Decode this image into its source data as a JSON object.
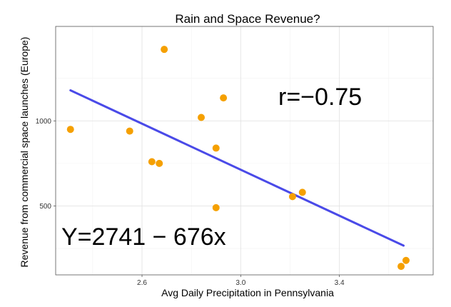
{
  "chart_data": {
    "type": "scatter",
    "title": "Rain and Space Revenue?",
    "xlabel": "Avg Daily Precipitation in Pennsylvania",
    "ylabel": "Revenue from commercial space launches (Europe)",
    "xlim": [
      2.25,
      3.78
    ],
    "ylim": [
      95,
      1555
    ],
    "x_ticks": [
      2.6,
      3.0,
      3.4
    ],
    "x_tick_labels": [
      "2.6",
      "3.0",
      "3.4"
    ],
    "y_ticks": [
      500,
      1000
    ],
    "y_tick_labels": [
      "500",
      "1000"
    ],
    "x_minor_ticks": [
      2.4,
      2.8,
      3.2,
      3.6
    ],
    "y_minor_ticks": [
      250,
      750,
      1250
    ],
    "grid": true,
    "point_color": "#f5a000",
    "line_color": "#4a4ae8",
    "points": [
      {
        "x": 2.31,
        "y": 950
      },
      {
        "x": 2.55,
        "y": 940
      },
      {
        "x": 2.64,
        "y": 760
      },
      {
        "x": 2.67,
        "y": 750
      },
      {
        "x": 2.69,
        "y": 1420
      },
      {
        "x": 2.84,
        "y": 1020
      },
      {
        "x": 2.9,
        "y": 840
      },
      {
        "x": 2.9,
        "y": 490
      },
      {
        "x": 2.93,
        "y": 1135
      },
      {
        "x": 3.21,
        "y": 555
      },
      {
        "x": 3.25,
        "y": 580
      },
      {
        "x": 3.65,
        "y": 145
      },
      {
        "x": 3.67,
        "y": 180
      }
    ],
    "regression_line": {
      "intercept": 2741,
      "slope": -676,
      "x_range": [
        2.31,
        3.66
      ]
    },
    "annotations": {
      "r_text": "r=−0.75",
      "equation_text": "Y=2741 − 676x"
    }
  }
}
